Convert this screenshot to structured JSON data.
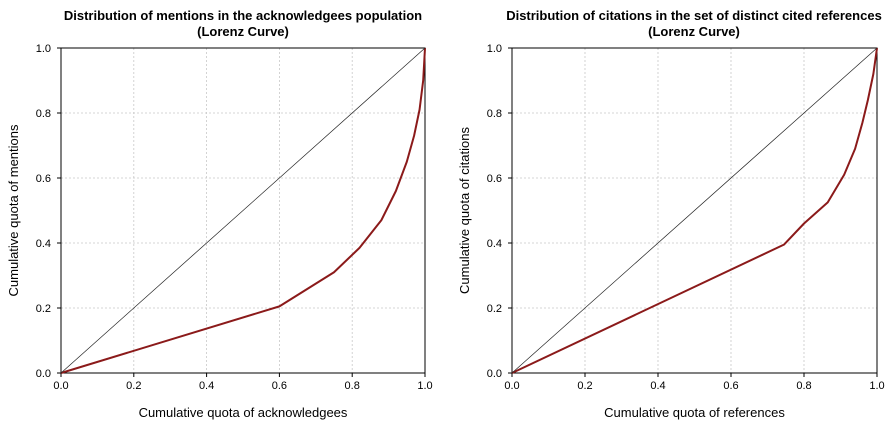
{
  "chart_data": [
    {
      "type": "line",
      "title": "Distribution of mentions in the acknowledgees population",
      "subtitle": "(Lorenz Curve)",
      "xlabel": "Cumulative quota of acknowledgees",
      "ylabel": "Cumulative quota of mentions",
      "xlim": [
        0,
        1
      ],
      "ylim": [
        0,
        1
      ],
      "xticks": [
        "0.0",
        "0.2",
        "0.4",
        "0.6",
        "0.8",
        "1.0"
      ],
      "yticks": [
        "0.0",
        "0.2",
        "0.4",
        "0.6",
        "0.8",
        "1.0"
      ],
      "grid": true,
      "series": [
        {
          "role": "lorenz",
          "color": "#8b1a1a",
          "x": [
            0.0,
            0.6,
            0.75,
            0.82,
            0.88,
            0.92,
            0.95,
            0.97,
            0.985,
            0.995,
            1.0
          ],
          "y": [
            0.0,
            0.205,
            0.31,
            0.385,
            0.47,
            0.56,
            0.65,
            0.73,
            0.81,
            0.9,
            1.0
          ]
        },
        {
          "role": "equality",
          "color": "#222222",
          "x": [
            0,
            1
          ],
          "y": [
            0,
            1
          ]
        }
      ]
    },
    {
      "type": "line",
      "title": "Distribution of citations in the set of distinct cited references",
      "subtitle": "(Lorenz Curve)",
      "xlabel": "Cumulative quota of references",
      "ylabel": "Cumulative quota of citations",
      "xlim": [
        0,
        1
      ],
      "ylim": [
        0,
        1
      ],
      "xticks": [
        "0.0",
        "0.2",
        "0.4",
        "0.6",
        "0.8",
        "1.0"
      ],
      "yticks": [
        "0.0",
        "0.2",
        "0.4",
        "0.6",
        "0.8",
        "1.0"
      ],
      "grid": true,
      "series": [
        {
          "role": "lorenz",
          "color": "#8b1a1a",
          "x": [
            0.0,
            0.745,
            0.8,
            0.865,
            0.91,
            0.94,
            0.96,
            0.975,
            0.99,
            1.0
          ],
          "y": [
            0.0,
            0.395,
            0.46,
            0.525,
            0.61,
            0.69,
            0.77,
            0.84,
            0.92,
            1.0
          ]
        },
        {
          "role": "equality",
          "color": "#222222",
          "x": [
            0,
            1
          ],
          "y": [
            0,
            1
          ]
        }
      ]
    }
  ]
}
